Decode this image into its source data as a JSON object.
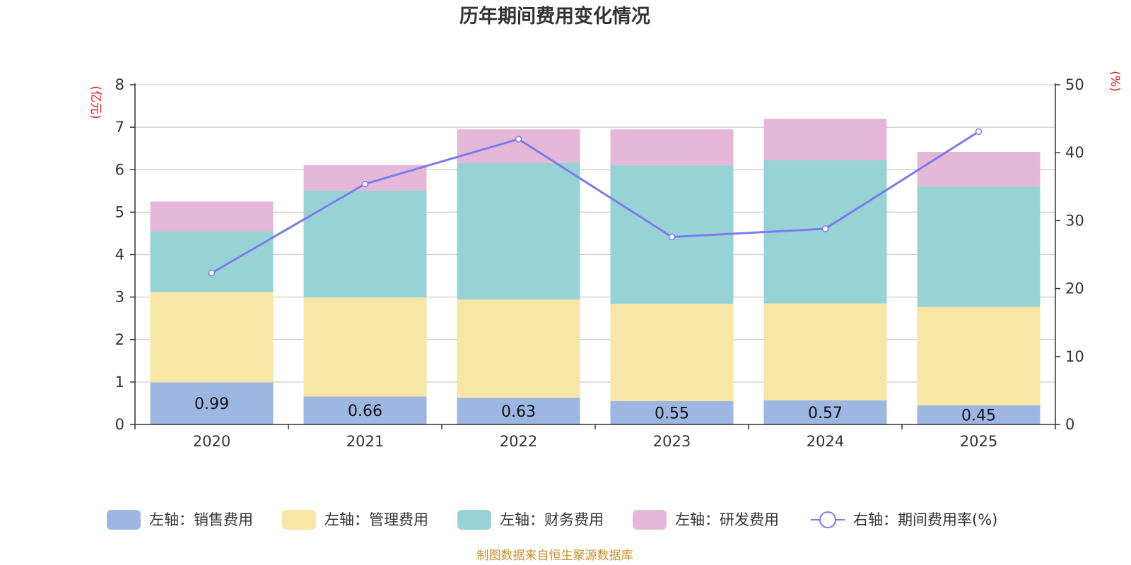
{
  "chart_data": {
    "type": "bar",
    "title": "历年期间费用变化情况",
    "categories": [
      "2020",
      "2021",
      "2022",
      "2023",
      "2024",
      "2025"
    ],
    "left_axis": {
      "unit": "(亿元)",
      "ylim": [
        0,
        8
      ],
      "ticks": [
        0,
        1,
        2,
        3,
        4,
        5,
        6,
        7,
        8
      ]
    },
    "right_axis": {
      "unit": "(%)",
      "ylim": [
        0,
        50
      ],
      "ticks": [
        0,
        10,
        20,
        30,
        40,
        50
      ]
    },
    "series": [
      {
        "name": "左轴：销售费用",
        "type": "bar",
        "axis": "left",
        "color": "#9db7e2",
        "values": [
          0.99,
          0.66,
          0.63,
          0.55,
          0.57,
          0.45
        ],
        "labels": [
          "0.99",
          "0.66",
          "0.63",
          "0.55",
          "0.57",
          "0.45"
        ]
      },
      {
        "name": "左轴：管理费用",
        "type": "bar",
        "axis": "left",
        "color": "#f7e6a6",
        "values": [
          2.13,
          2.33,
          2.31,
          2.29,
          2.28,
          2.32
        ]
      },
      {
        "name": "左轴：财务费用",
        "type": "bar",
        "axis": "left",
        "color": "#97d3d4",
        "values": [
          1.43,
          2.52,
          3.22,
          3.27,
          3.37,
          2.84
        ]
      },
      {
        "name": "左轴：研发费用",
        "type": "bar",
        "axis": "left",
        "color": "#e6b8d8",
        "values": [
          0.7,
          0.6,
          0.79,
          0.84,
          0.98,
          0.81
        ]
      },
      {
        "name": "右轴：期间费用率(%)",
        "type": "line",
        "axis": "right",
        "color": "#7b7bf0",
        "values": [
          22.3,
          35.4,
          42.0,
          27.6,
          28.8,
          43.1
        ]
      }
    ],
    "legend_position": "bottom",
    "grid": true
  },
  "source": "制图数据来自恒生聚源数据库"
}
